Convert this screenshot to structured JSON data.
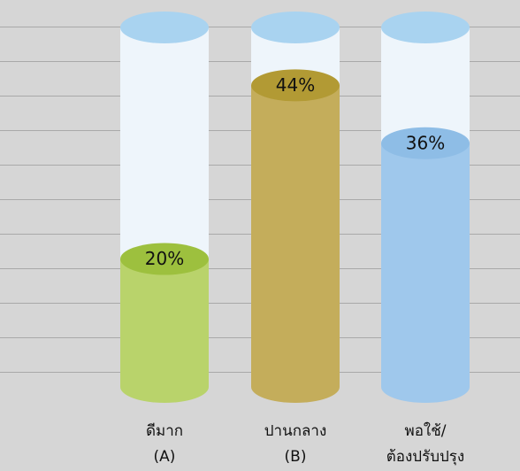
{
  "chart_data": {
    "type": "cylinder-bar",
    "categories": [
      [
        "ดีมาก",
        "(A)"
      ],
      [
        "ปานกลาง",
        "(B)"
      ],
      [
        "พอใช้/",
        "ต้องปรับปรุง"
      ]
    ],
    "values": [
      20,
      44,
      36
    ],
    "value_labels": [
      "20%",
      "44%",
      "36%"
    ],
    "colors": [
      "#b9d36b",
      "#c4ad5b",
      "#9fc8ec"
    ],
    "cap_colors": [
      "#9dc03e",
      "#b29a34",
      "#8ebde6"
    ],
    "ylim": [
      0,
      52
    ]
  }
}
